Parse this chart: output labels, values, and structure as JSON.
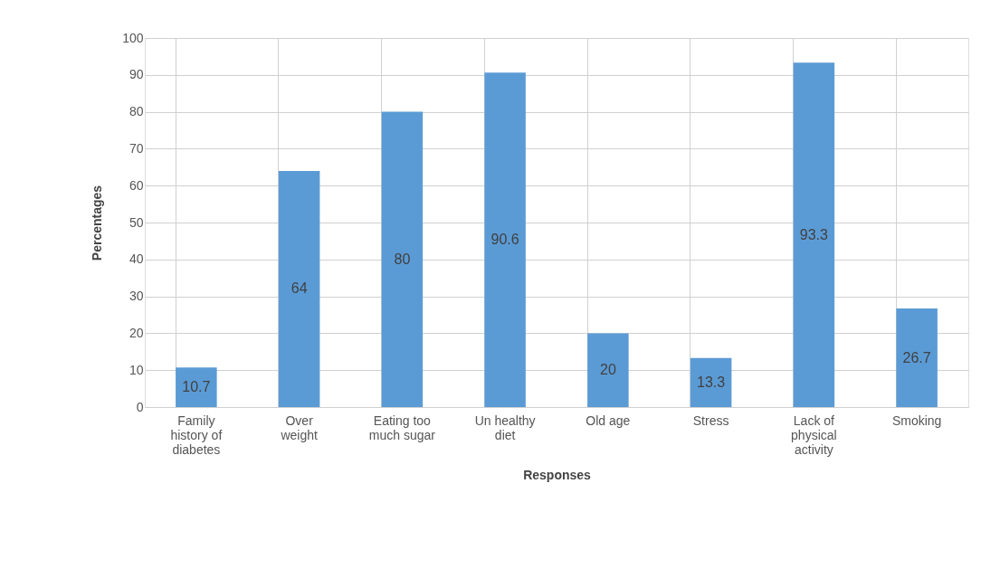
{
  "chart_data": {
    "type": "bar",
    "xlabel": "Responses",
    "ylabel": "Percentages",
    "categories": [
      "Family history of diabetes",
      "Over weight",
      "Eating too much sugar",
      "Un healthy diet",
      "Old age",
      "Stress",
      "Lack of physical activity",
      "Smoking"
    ],
    "values": [
      10.7,
      64,
      80,
      90.6,
      20,
      13.3,
      93.3,
      26.7
    ],
    "color": "#5b9bd5",
    "ylim": [
      0,
      100
    ],
    "yticks": [
      0,
      10,
      20,
      30,
      40,
      50,
      60,
      70,
      80,
      90,
      100
    ],
    "grid": true,
    "data_labels": true
  }
}
